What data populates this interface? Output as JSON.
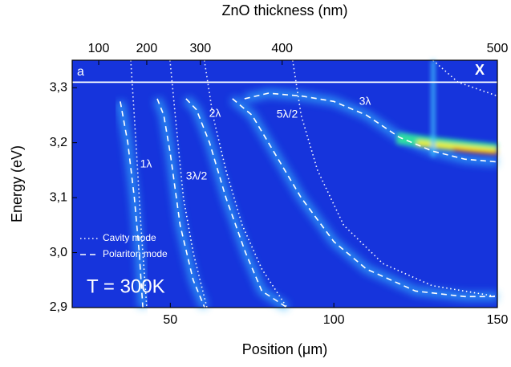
{
  "chart_data": {
    "type": "line",
    "xlabel": "Position (μm)",
    "ylabel": "Energy (eV)",
    "x2label": "ZnO thickness (nm)",
    "xlim": [
      20,
      150
    ],
    "ylim": [
      2.9,
      3.35
    ],
    "xticks": [
      50,
      100,
      150
    ],
    "yticks": [
      {
        "value": 2.9,
        "label": "2,9"
      },
      {
        "value": 3.0,
        "label": "3,0"
      },
      {
        "value": 3.1,
        "label": "3,1"
      },
      {
        "value": 3.2,
        "label": "3,2"
      },
      {
        "value": 3.3,
        "label": "3,3"
      }
    ],
    "x2ticks": [
      {
        "value": 28.1,
        "label": "100"
      },
      {
        "value": 42.8,
        "label": "200"
      },
      {
        "value": 59.2,
        "label": "300"
      },
      {
        "value": 84.2,
        "label": "400"
      },
      {
        "value": 150,
        "label": "500"
      }
    ],
    "background": "#1634dc",
    "legend": "lower left",
    "series": [
      {
        "name": "Cavity mode",
        "color": "#ffffff",
        "dash": "dotted",
        "lines": [
          {
            "x": [
              37.9,
              39.5,
              41,
              42.8
            ],
            "values": [
              3.35,
              3.2,
              3.05,
              2.9
            ]
          },
          {
            "x": [
              49.9,
              51.5,
              54,
              57,
              61.2
            ],
            "values": [
              3.35,
              3.25,
              3.1,
              3.0,
              2.9
            ]
          },
          {
            "x": [
              60.4,
              63,
              67,
              72,
              78,
              85.7
            ],
            "values": [
              3.35,
              3.25,
              3.15,
              3.05,
              2.97,
              2.9
            ]
          },
          {
            "x": [
              87.4,
              90,
              95,
              103,
              115,
              130,
              150
            ],
            "values": [
              3.35,
              3.25,
              3.15,
              3.05,
              2.98,
              2.94,
              2.92
            ]
          },
          {
            "x": [
              130.3,
              138,
              150
            ],
            "values": [
              3.35,
              3.31,
              3.285
            ]
          }
        ]
      },
      {
        "name": "Polariton mode",
        "color": "#ffffff",
        "dash": "dashed",
        "lines": [
          {
            "x": [
              34.7,
              37,
              39,
              40.5,
              41.6
            ],
            "values": [
              3.275,
              3.2,
              3.1,
              3.0,
              2.9
            ]
          },
          {
            "x": [
              46,
              48,
              50,
              53,
              57,
              60.5
            ],
            "values": [
              3.28,
              3.25,
              3.18,
              3.05,
              2.95,
              2.9
            ]
          },
          {
            "x": [
              54.8,
              58,
              62,
              67,
              73,
              78,
              85.7
            ],
            "values": [
              3.28,
              3.26,
              3.2,
              3.1,
              3.0,
              2.93,
              2.9
            ]
          },
          {
            "x": [
              69,
              75,
              83,
              90,
              100,
              110,
              125,
              140,
              150
            ],
            "values": [
              3.28,
              3.25,
              3.17,
              3.1,
              3.02,
              2.97,
              2.93,
              2.92,
              2.92
            ]
          },
          {
            "x": [
              72.7,
              80,
              90,
              100,
              110,
              120,
              130,
              140,
              150
            ],
            "values": [
              3.28,
              3.29,
              3.285,
              3.275,
              3.25,
              3.21,
              3.185,
              3.17,
              3.165
            ]
          }
        ]
      }
    ],
    "hlines": [
      {
        "value": 3.31,
        "label": "X"
      }
    ],
    "annotations": [
      "1λ",
      "3λ/2",
      "2λ",
      "5λ/2",
      "3λ",
      "a",
      "T = 300K"
    ]
  }
}
